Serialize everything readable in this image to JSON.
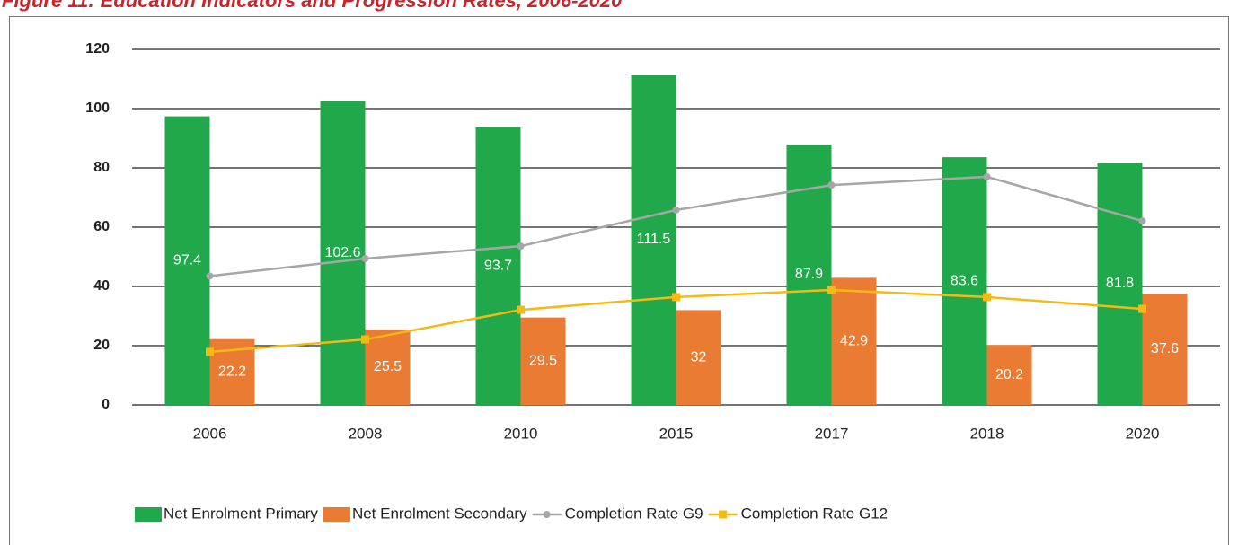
{
  "chart_data": {
    "type": "bar",
    "title": "Figure 11: Education Indicators and Progression Rates, 2006-2020",
    "categories": [
      "2006",
      "2008",
      "2010",
      "2015",
      "2017",
      "2018",
      "2020"
    ],
    "series": [
      {
        "name": "Net Enrolment Primary",
        "type": "bar",
        "color": "#21a84a",
        "values": [
          97.4,
          102.6,
          93.7,
          111.5,
          87.9,
          83.6,
          81.8
        ]
      },
      {
        "name": "Net Enrolment Secondary",
        "type": "bar",
        "color": "#e97b32",
        "values": [
          22.2,
          25.5,
          29.5,
          32,
          42.9,
          20.2,
          37.6
        ]
      },
      {
        "name": "Completion Rate G9",
        "type": "line",
        "color": "#a6a6a6",
        "values": [
          43.5,
          49.4,
          53.6,
          65.8,
          74.2,
          77,
          62.1
        ]
      },
      {
        "name": "Completion Rate G12",
        "type": "line",
        "color": "#f5b914",
        "values": [
          17.9,
          22.1,
          32.1,
          36.4,
          38.8,
          36.4,
          32.4
        ]
      }
    ],
    "ylim": [
      0,
      120
    ],
    "yticks": [
      0,
      20,
      40,
      60,
      80,
      100,
      120
    ],
    "grid": true,
    "legend": "bottom"
  }
}
